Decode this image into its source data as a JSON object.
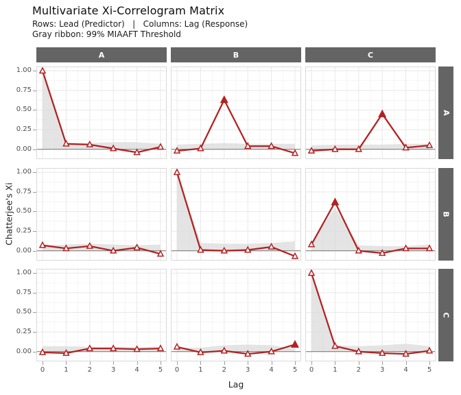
{
  "header": {
    "title": "Multivariate Xi-Correlogram Matrix",
    "subtitle_line1": "Rows: Lead (Predictor)   |   Columns: Lag (Response)",
    "subtitle_line2": "Gray ribbon: 99% MIAAFT Threshold"
  },
  "colors": {
    "line": "#B22222",
    "marker_fill_open": "#FFFFFF",
    "ribbon": "#DADADA",
    "strip_bg": "#646464",
    "strip_text": "#FFFFFF",
    "zero_line": "#808080",
    "grid_major": "#E8E8E8",
    "grid_minor": "#F4F4F4",
    "panel_border": "#D9D9D9",
    "panel_bg": "#FFFFFF",
    "axis_text": "#4D4D4D"
  },
  "chart_data": {
    "type": "line",
    "title": "Multivariate Xi-Correlogram Matrix",
    "subtitle": [
      "Rows: Lead (Predictor)   |   Columns: Lag (Response)",
      "Gray ribbon: 99% MIAAFT Threshold"
    ],
    "xlabel": "Lag",
    "ylabel": "Chatterjee's Xi",
    "x": [
      0,
      1,
      2,
      3,
      4,
      5
    ],
    "xtick_labels": [
      "0",
      "1",
      "2",
      "3",
      "4",
      "5"
    ],
    "ytick_values": [
      0.0,
      0.25,
      0.5,
      0.75,
      1.0
    ],
    "ytick_labels": [
      "0.00",
      "0.25",
      "0.50",
      "0.75",
      "1.00"
    ],
    "ylim": [
      -0.125,
      1.055
    ],
    "grid": true,
    "legend_position": "none",
    "facet_cols": [
      "A",
      "B",
      "C"
    ],
    "facet_rows": [
      "A",
      "B",
      "C"
    ],
    "ribbon_lower": 0,
    "panels": [
      {
        "row": "A",
        "col": "A",
        "values": [
          1.0,
          0.07,
          0.06,
          0.01,
          -0.04,
          0.03
        ],
        "ribbon_upper": [
          1.0,
          0.07,
          0.08,
          0.09,
          0.09,
          0.07
        ],
        "significant": [
          false,
          false,
          false,
          false,
          false,
          false
        ]
      },
      {
        "row": "A",
        "col": "B",
        "values": [
          -0.02,
          0.01,
          0.63,
          0.04,
          0.04,
          -0.05
        ],
        "ribbon_upper": [
          0.06,
          0.07,
          0.08,
          0.07,
          0.07,
          0.07
        ],
        "significant": [
          false,
          false,
          true,
          false,
          false,
          false
        ]
      },
      {
        "row": "A",
        "col": "C",
        "values": [
          -0.02,
          0.0,
          0.0,
          0.45,
          0.02,
          0.05
        ],
        "ribbon_upper": [
          0.05,
          0.06,
          0.06,
          0.06,
          0.07,
          0.07
        ],
        "significant": [
          false,
          false,
          false,
          true,
          false,
          false
        ]
      },
      {
        "row": "B",
        "col": "A",
        "values": [
          0.07,
          0.03,
          0.06,
          0.0,
          0.04,
          -0.04
        ],
        "ribbon_upper": [
          0.07,
          0.08,
          0.09,
          0.08,
          0.07,
          0.08
        ],
        "significant": [
          false,
          false,
          false,
          false,
          false,
          false
        ]
      },
      {
        "row": "B",
        "col": "B",
        "values": [
          1.0,
          0.01,
          0.0,
          0.01,
          0.05,
          -0.07
        ],
        "ribbon_upper": [
          1.0,
          0.1,
          0.09,
          0.09,
          0.1,
          0.12
        ],
        "significant": [
          false,
          false,
          false,
          false,
          false,
          false
        ]
      },
      {
        "row": "B",
        "col": "C",
        "values": [
          0.08,
          0.62,
          0.0,
          -0.03,
          0.03,
          0.03
        ],
        "ribbon_upper": [
          0.1,
          0.55,
          0.07,
          0.06,
          0.06,
          0.08
        ],
        "significant": [
          false,
          true,
          false,
          false,
          false,
          false
        ]
      },
      {
        "row": "C",
        "col": "A",
        "values": [
          -0.01,
          -0.02,
          0.04,
          0.04,
          0.03,
          0.04
        ],
        "ribbon_upper": [
          0.07,
          0.07,
          0.06,
          0.06,
          0.06,
          0.06
        ],
        "significant": [
          false,
          false,
          false,
          false,
          false,
          false
        ]
      },
      {
        "row": "C",
        "col": "B",
        "values": [
          0.06,
          -0.01,
          0.01,
          -0.03,
          0.0,
          0.09
        ],
        "ribbon_upper": [
          0.05,
          0.05,
          0.08,
          0.09,
          0.08,
          0.04
        ],
        "significant": [
          false,
          false,
          false,
          false,
          false,
          true
        ]
      },
      {
        "row": "C",
        "col": "C",
        "values": [
          1.0,
          0.07,
          0.0,
          -0.02,
          -0.03,
          0.01
        ],
        "ribbon_upper": [
          1.0,
          0.08,
          0.07,
          0.08,
          0.1,
          0.07
        ],
        "significant": [
          false,
          false,
          false,
          false,
          false,
          false
        ]
      }
    ]
  }
}
